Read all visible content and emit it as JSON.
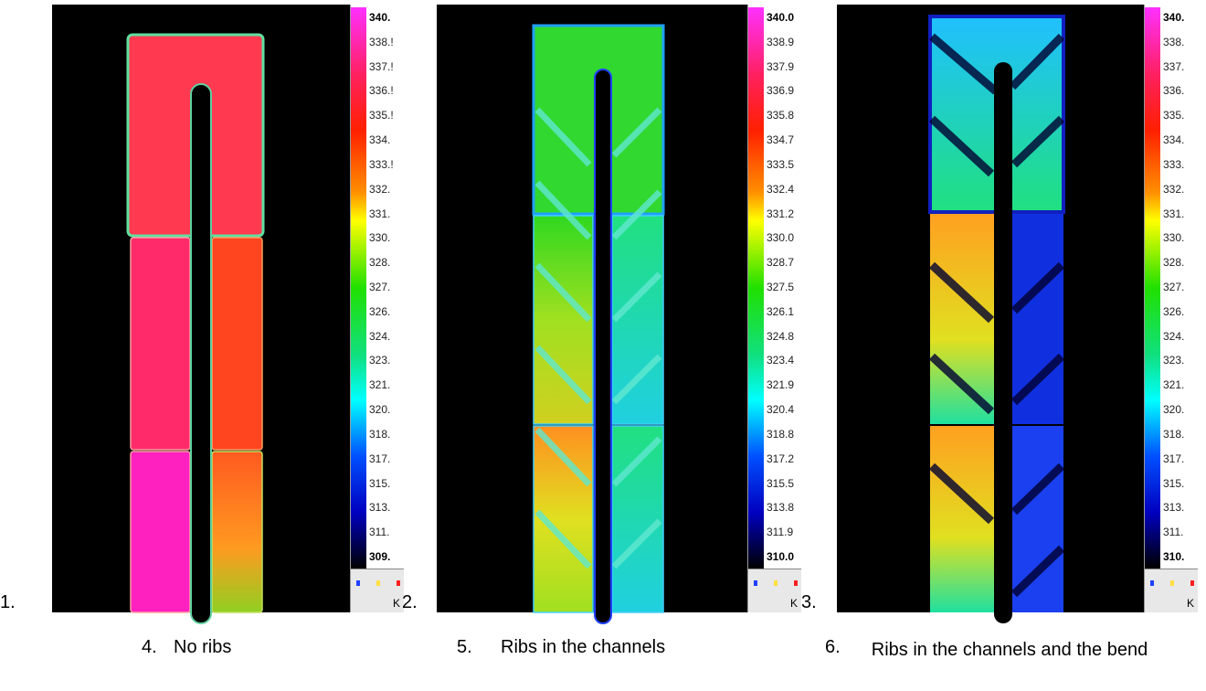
{
  "figures": [
    {
      "number": "1.",
      "scale": [
        "340.",
        "338.!",
        "337.!",
        "336.!",
        "335.!",
        "334.",
        "333.!",
        "332.",
        "331.",
        "330.",
        "328.",
        "327.",
        "326.",
        "324.",
        "323.",
        "321.",
        "320.",
        "318.",
        "317.",
        "315.",
        "313.",
        "311.",
        "309."
      ],
      "unit": "K"
    },
    {
      "number": "2.",
      "scale": [
        "340.0",
        "338.9",
        "337.9",
        "336.9",
        "335.8",
        "334.7",
        "333.5",
        "332.4",
        "331.2",
        "330.0",
        "328.7",
        "327.5",
        "326.1",
        "324.8",
        "323.4",
        "321.9",
        "320.4",
        "318.8",
        "317.2",
        "315.5",
        "313.8",
        "311.9",
        "310.0"
      ],
      "unit": "K"
    },
    {
      "number": "3.",
      "scale": [
        "340.",
        "338.",
        "337.",
        "336.",
        "335.",
        "334.",
        "333.",
        "332.",
        "331.",
        "330.",
        "328.",
        "327.",
        "326.",
        "324.",
        "323.",
        "321.",
        "320.",
        "318.",
        "317.",
        "315.",
        "313.",
        "311.",
        "310."
      ],
      "unit": "K"
    }
  ],
  "captions": [
    {
      "number": "4.",
      "text": "No ribs"
    },
    {
      "number": "5.",
      "text": "Ribs in the channels"
    },
    {
      "number": "6.",
      "text": "Ribs in the channels and the bend"
    }
  ]
}
